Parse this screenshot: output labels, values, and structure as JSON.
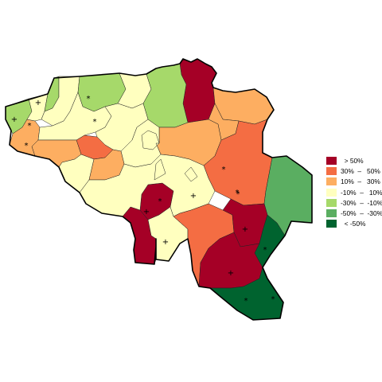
{
  "colors": {
    "c1": "#a50026",
    "c2": "#f46d43",
    "c3": "#fdae61",
    "c4": "#ffffbf",
    "c5": "#a6d96a",
    "c6": "#5aae61",
    "c7": "#00632f"
  },
  "legend": {
    "items": [
      {
        "label": "  > 50%",
        "color_key": "c1"
      },
      {
        "label": "30%  –   50%",
        "color_key": "c2"
      },
      {
        "label": "10%  –   30%",
        "color_key": "c3"
      },
      {
        "label": "-10%  –   10%",
        "color_key": "c4"
      },
      {
        "label": "-30%  –  -10%",
        "color_key": "c5"
      },
      {
        "label": "-50%  –  -30%",
        "color_key": "c6"
      },
      {
        "label": "  < -50%",
        "color_key": "c7"
      }
    ]
  },
  "regions": [
    {
      "id": "r01",
      "class": "c5"
    },
    {
      "id": "r02",
      "class": "c3"
    },
    {
      "id": "r03",
      "class": "c4"
    },
    {
      "id": "r04",
      "class": "c5"
    },
    {
      "id": "r05",
      "class": "c4"
    },
    {
      "id": "r06",
      "class": "c5"
    },
    {
      "id": "r07",
      "class": "c4"
    },
    {
      "id": "r08",
      "class": "c1"
    },
    {
      "id": "r09",
      "class": "c3"
    },
    {
      "id": "r10",
      "class": "c3"
    },
    {
      "id": "r11",
      "class": "c5"
    },
    {
      "id": "r12",
      "class": "c6"
    },
    {
      "id": "r13",
      "class": "c2"
    },
    {
      "id": "r14",
      "class": "c4"
    },
    {
      "id": "r15",
      "class": "c3"
    },
    {
      "id": "r16",
      "class": "c4"
    },
    {
      "id": "r17",
      "class": "c4"
    },
    {
      "id": "r18",
      "class": "c3"
    },
    {
      "id": "r19",
      "class": "c4"
    },
    {
      "id": "r20",
      "class": "c2"
    },
    {
      "id": "r21",
      "class": "c6"
    },
    {
      "id": "r22",
      "class": "c3"
    },
    {
      "id": "r23",
      "class": "c1"
    },
    {
      "id": "r24",
      "class": "c1"
    },
    {
      "id": "r25",
      "class": "c4"
    },
    {
      "id": "r26",
      "class": "c4"
    },
    {
      "id": "r27",
      "class": "c2"
    },
    {
      "id": "r28",
      "class": "c1"
    },
    {
      "id": "r29",
      "class": "c1"
    },
    {
      "id": "r30",
      "class": "c7"
    },
    {
      "id": "r31",
      "class": "c7"
    },
    {
      "id": "r32",
      "class": "c4"
    },
    {
      "id": "r33",
      "class": "c4"
    }
  ],
  "markers": [
    {
      "symbol": "+"
    },
    {
      "symbol": "+"
    },
    {
      "symbol": "*"
    },
    {
      "symbol": "*"
    },
    {
      "symbol": "*"
    },
    {
      "symbol": "*"
    },
    {
      "symbol": "*"
    },
    {
      "symbol": "+"
    },
    {
      "symbol": "*"
    },
    {
      "symbol": "*"
    },
    {
      "symbol": "+"
    },
    {
      "symbol": "+"
    },
    {
      "symbol": "+"
    },
    {
      "symbol": "+"
    },
    {
      "symbol": "*"
    },
    {
      "symbol": "*"
    },
    {
      "symbol": "*"
    },
    {
      "symbol": "*"
    }
  ]
}
